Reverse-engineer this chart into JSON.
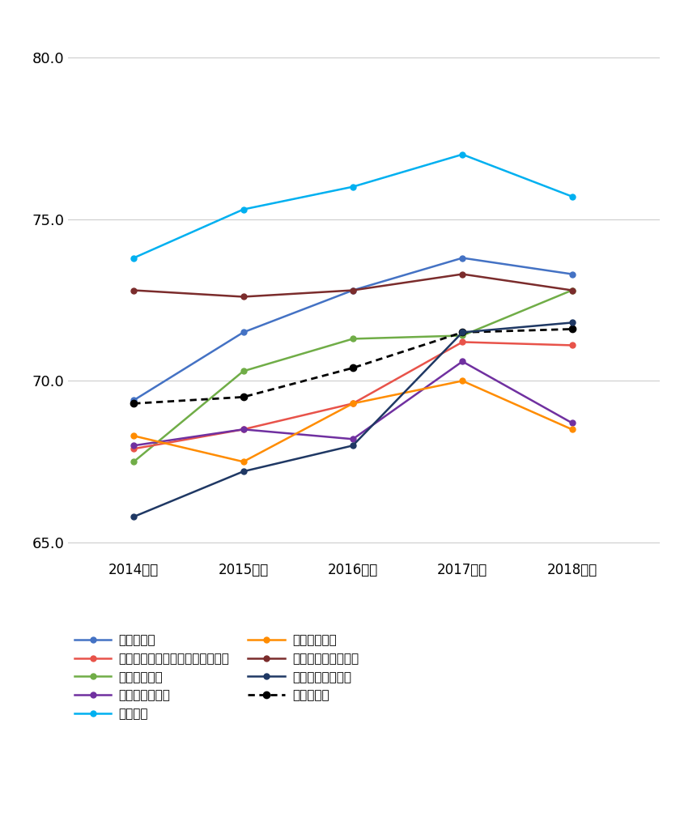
{
  "years": [
    2014,
    2015,
    2016,
    2017,
    2018
  ],
  "year_labels": [
    "2014年度",
    "2015年度",
    "2016年度",
    "2017年度",
    "2018年度"
  ],
  "series": [
    {
      "name": "百貨店平均",
      "values": [
        69.4,
        71.5,
        72.8,
        73.8,
        73.3
      ],
      "color": "#4472C4",
      "linestyle": "-",
      "marker": "o"
    },
    {
      "name": "衣料品店平均",
      "values": [
        67.5,
        70.3,
        71.3,
        71.4,
        72.8
      ],
      "color": "#70AD47",
      "linestyle": "-",
      "marker": "o"
    },
    {
      "name": "旅行平均",
      "values": [
        73.8,
        75.3,
        76.0,
        77.0,
        75.7
      ],
      "color": "#00B0F0",
      "linestyle": "-",
      "marker": "o"
    },
    {
      "name": "国内長距離交通平均",
      "values": [
        72.8,
        72.6,
        72.8,
        73.3,
        72.8
      ],
      "color": "#7B2C2C",
      "linestyle": "-",
      "marker": "o"
    },
    {
      "name": "全業種平均",
      "values": [
        69.3,
        69.5,
        70.4,
        71.5,
        71.6
      ],
      "color": "#000000",
      "linestyle": "dotted",
      "marker": "o"
    },
    {
      "name": "生活用品店／ホームセンター平均",
      "values": [
        67.9,
        68.5,
        69.3,
        71.2,
        71.1
      ],
      "color": "#E8534A",
      "linestyle": "-",
      "marker": "o"
    },
    {
      "name": "各種専門店平均",
      "values": [
        68.0,
        68.5,
        68.2,
        70.6,
        68.7
      ],
      "color": "#7030A0",
      "linestyle": "-",
      "marker": "o"
    },
    {
      "name": "国際航空平均",
      "values": [
        68.3,
        67.5,
        69.3,
        70.0,
        68.5
      ],
      "color": "#FF8C00",
      "linestyle": "-",
      "marker": "o"
    },
    {
      "name": "教育サービス平均",
      "values": [
        65.8,
        67.2,
        68.0,
        71.5,
        71.8
      ],
      "color": "#1F3864",
      "linestyle": "-",
      "marker": "o"
    }
  ],
  "ylim": [
    64.5,
    81.0
  ],
  "yticks": [
    65.0,
    70.0,
    75.0,
    80.0
  ],
  "ytick_labels": [
    "65.0",
    "70.0",
    "75.0",
    "80.0"
  ],
  "background_color": "#FFFFFF",
  "grid_color": "#CCCCCC",
  "marker_size": 5,
  "linewidth": 1.8,
  "legend_left": [
    "百貨店平均",
    "衣料品店平均",
    "旅行平均",
    "国内長距離交通平均",
    "全業種平均"
  ],
  "legend_right": [
    "生活用品店／ホームセンター平均",
    "各種専門店平均",
    "国際航空平均",
    "教育サービス平均",
    ""
  ]
}
